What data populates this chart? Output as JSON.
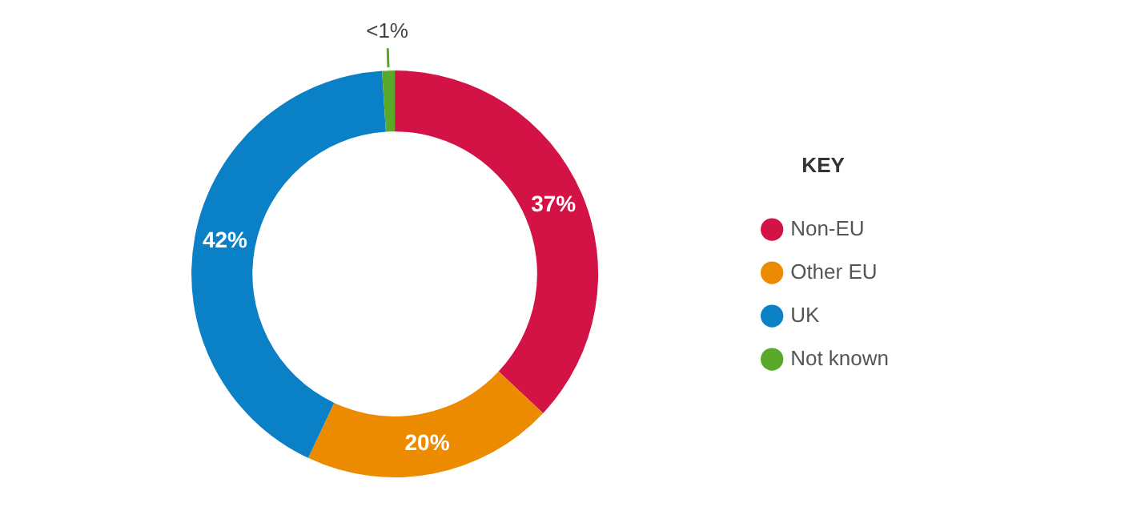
{
  "chart_data": {
    "type": "donut",
    "legend_title": "KEY",
    "legend": "right",
    "categories": [
      "Non-EU",
      "Other EU",
      "UK",
      "Not known"
    ],
    "values": [
      37,
      20,
      42,
      1
    ],
    "colors": [
      "#d31245",
      "#ec8b00",
      "#0a80c6",
      "#5aa82a"
    ],
    "value_labels": [
      "37%",
      "20%",
      "42%",
      "<1%"
    ]
  }
}
